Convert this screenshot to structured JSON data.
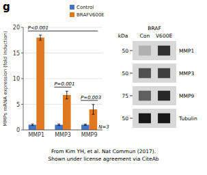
{
  "chart_data": [
    {
      "type": "bar",
      "title": "g",
      "categories": [
        "MMP1",
        "MMP3",
        "MMP9"
      ],
      "series": [
        {
          "name": "Control",
          "color": "#4472C4",
          "values": [
            1.0,
            1.0,
            1.0
          ],
          "errors": [
            0.15,
            0.15,
            0.12
          ]
        },
        {
          "name": "BRAFV600E",
          "color": "#E07820",
          "values": [
            18.0,
            6.8,
            4.0
          ],
          "errors": [
            0.5,
            0.75,
            0.95
          ]
        }
      ],
      "ylabel": "MMPs mRNA expression (fold induction)",
      "ylim": [
        0,
        20
      ],
      "yticks": [
        0,
        5,
        10,
        15,
        20
      ],
      "grid": true,
      "legend": "upper right",
      "annotations": [
        {
          "text": "P<0.001",
          "categories": [
            "MMP1",
            "MMP9"
          ]
        },
        {
          "text": "P=0.001",
          "categories": [
            "MMP3"
          ]
        },
        {
          "text": "P=0.003",
          "categories": [
            "MMP9"
          ]
        },
        {
          "text": "N=3"
        }
      ],
      "caption": [
        "From Kim YH, et al. Nat Commun (2017).",
        "Shown under license agreement via CiteAb"
      ]
    },
    {
      "type": "blot",
      "title": "BRAF",
      "categories": [
        "Con",
        "V600E"
      ],
      "color": "#d8d8d8",
      "kda_label": "kDa",
      "series": [
        {
          "name": "MMP1",
          "kda": "50",
          "colors": [
            "#b0b0b0",
            "#303030"
          ]
        },
        {
          "name": "MMP3",
          "kda": "50",
          "colors": [
            "#505050",
            "#404040"
          ]
        },
        {
          "name": "MMP9",
          "kda": "75",
          "colors": [
            "#606060",
            "#282828"
          ]
        },
        {
          "name": "Tubulin",
          "kda": "50",
          "colors": [
            "#181818",
            "#181818"
          ]
        }
      ]
    }
  ]
}
